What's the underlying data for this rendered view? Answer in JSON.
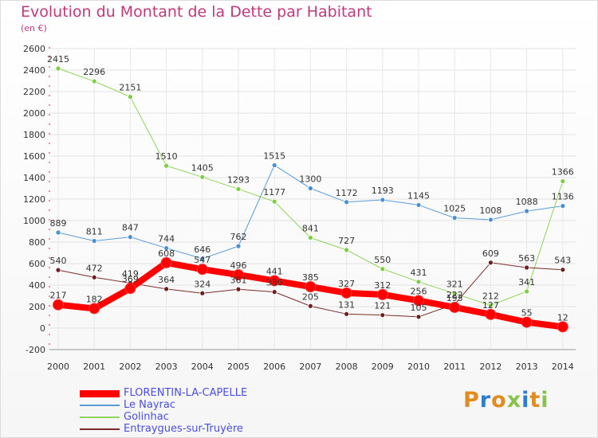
{
  "title": "Evolution du Montant de la Dette par Habitant",
  "subtitle": "(en €)",
  "logo": "Proxiti",
  "chart_data": {
    "type": "line",
    "x": [
      "2000",
      "2001",
      "2002",
      "2003",
      "2004",
      "2005",
      "2006",
      "2007",
      "2008",
      "2009",
      "2010",
      "2011",
      "2012",
      "2013",
      "2014"
    ],
    "ylim": [
      -200,
      2600
    ],
    "yticks": [
      -200,
      0,
      200,
      400,
      600,
      800,
      1000,
      1200,
      1400,
      1600,
      1800,
      2000,
      2200,
      2400,
      2600
    ],
    "grid": true,
    "legend_position": "bottom-left",
    "series": [
      {
        "name": "Le Nayrac",
        "color": "#5b9bd5",
        "point_color": "#4a8fd0",
        "width": 1,
        "values": [
          889,
          811,
          847,
          744,
          646,
          762,
          1515,
          1300,
          1172,
          1193,
          1145,
          1025,
          1008,
          1088,
          1136
        ]
      },
      {
        "name": "Golinhac",
        "color": "#8fd45c",
        "point_color": "#7ccf3f",
        "width": 1,
        "values": [
          2415,
          2296,
          2151,
          1510,
          1405,
          1293,
          1177,
          841,
          727,
          550,
          431,
          321,
          212,
          341,
          1366
        ]
      },
      {
        "name": "Entraygues-sur-Truyère",
        "color": "#7a2a2a",
        "point_color": "#6b1f1f",
        "width": 1,
        "values": [
          540,
          472,
          419,
          364,
          324,
          361,
          336,
          205,
          131,
          121,
          105,
          222,
          609,
          563,
          543
        ]
      },
      {
        "name": "FLORENTIN-LA-CAPELLE",
        "color": "#ff0000",
        "point_color": "#ff0000",
        "width": 8,
        "values": [
          217,
          182,
          369,
          608,
          547,
          496,
          441,
          385,
          327,
          312,
          256,
          193,
          127,
          55,
          12
        ]
      }
    ]
  }
}
